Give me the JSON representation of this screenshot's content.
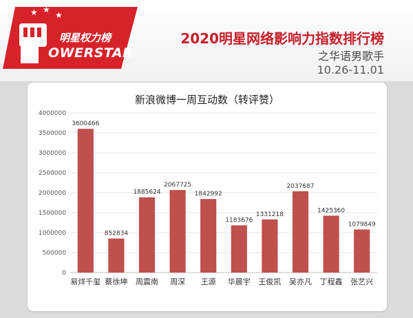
{
  "header": {
    "logo_cn": "明星权力榜",
    "logo_en": "OWERSTAR",
    "title": "2020明星网络影响力指数排行榜",
    "subtitle": "之华语男歌手",
    "date_range": "10.26-11.01"
  },
  "colors": {
    "bar": "#c0504d",
    "accent": "#c4202a",
    "logo_red": "#d7222a"
  },
  "chart_data": {
    "type": "bar",
    "title": "新浪微博一周互动数（转评赞）",
    "categories": [
      "易烊千玺",
      "蔡徐坤",
      "周震南",
      "周深",
      "王源",
      "华晨宇",
      "王俊凯",
      "吴亦凡",
      "丁程鑫",
      "张艺兴"
    ],
    "values": [
      3600466,
      852834,
      1885624,
      2067725,
      1842992,
      1183676,
      1331218,
      2037687,
      1425360,
      1079849
    ],
    "value_labels": [
      "3600466",
      "852834",
      "1885624",
      "2067725",
      "1842992",
      "1183676",
      "1331218",
      "2037687",
      "1425360",
      "1079849"
    ],
    "ylim": [
      0,
      4000000
    ],
    "yticks": [
      "0",
      "500000",
      "1000000",
      "1500000",
      "2000000",
      "2500000",
      "3000000",
      "3500000",
      "4000000"
    ],
    "grid": true,
    "xlabel": "",
    "ylabel": ""
  }
}
